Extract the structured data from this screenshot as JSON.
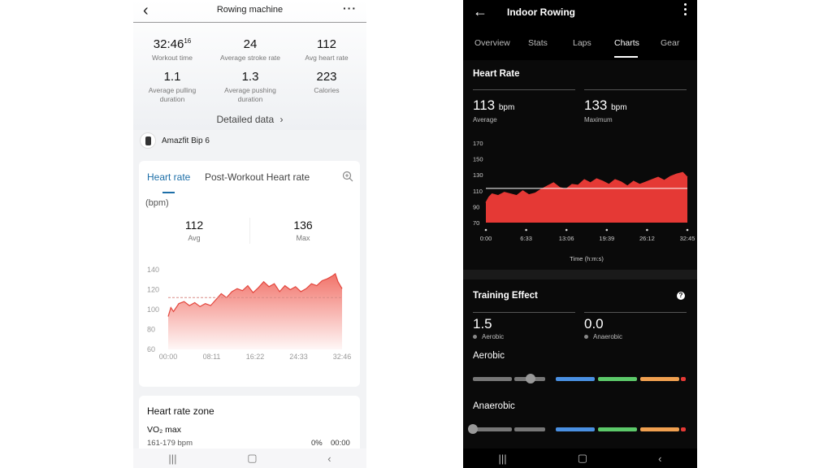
{
  "left": {
    "header": {
      "title": "Rowing machine"
    },
    "stats": [
      {
        "value": "32:46",
        "sup": "16",
        "label": "Workout time"
      },
      {
        "value": "24",
        "label": "Average stroke rate"
      },
      {
        "value": "112",
        "label": "Avg heart rate"
      },
      {
        "value": "1.1",
        "label": "Average pulling duration"
      },
      {
        "value": "1.3",
        "label": "Average pushing duration"
      },
      {
        "value": "223",
        "label": "Calories"
      }
    ],
    "detailed_label": "Detailed data",
    "device_name": "Amazfit Bip 6",
    "hr_card": {
      "tab_active": "Heart rate",
      "tab_other": "Post-Workout Heart rate",
      "unit_label": "(bpm)",
      "avg_value": "112",
      "avg_label": "Avg",
      "max_value": "136",
      "max_label": "Max"
    },
    "zone_card": {
      "title": "Heart rate zone",
      "zone_name": "VO₂ max",
      "zone_range": "161-179 bpm",
      "zone_percent": "0%",
      "zone_duration": "00:00"
    }
  },
  "right": {
    "header": {
      "title": "Indoor Rowing"
    },
    "tabs": [
      "Overview",
      "Stats",
      "Laps",
      "Charts",
      "Gear"
    ],
    "active_tab": "Charts",
    "heart_rate": {
      "title": "Heart Rate",
      "avg_value": "113",
      "avg_unit": "bpm",
      "avg_label": "Average",
      "max_value": "133",
      "max_unit": "bpm",
      "max_label": "Maximum"
    },
    "training": {
      "title": "Training Effect",
      "aerobic_value": "1.5",
      "aerobic_label": "Aerobic",
      "anaerobic_value": "0.0",
      "anaerobic_label": "Anaerobic",
      "aerobic_title": "Aerobic",
      "anaerobic_title": "Anaerobic",
      "help_glyph": "?",
      "aerobic_level_fraction": 0.27,
      "anaerobic_level_fraction": 0.0
    },
    "colors": {
      "red": "#e53935",
      "blue": "#4a90e2",
      "green": "#5cc96a",
      "orange": "#f0a050",
      "grey": "#777777"
    }
  },
  "chart_data": [
    {
      "type": "area",
      "title": "",
      "xlabel": "",
      "ylabel": "(bpm)",
      "x_ticks": [
        "00:00",
        "08:11",
        "16:22",
        "24:33",
        "32:46"
      ],
      "y_ticks": [
        60,
        80,
        100,
        120,
        140
      ],
      "ylim": [
        60,
        140
      ],
      "xlim": [
        0,
        32.77
      ],
      "reference_line": 112,
      "series": [
        {
          "x": [
            0,
            0.5,
            1,
            2,
            3,
            4,
            5,
            6,
            7,
            8,
            9,
            10,
            11,
            12,
            13,
            14,
            15,
            16,
            17,
            18,
            19,
            20,
            21,
            22,
            23,
            24,
            25,
            26,
            27,
            28,
            29,
            30,
            31,
            31.5,
            32,
            32.77
          ],
          "y": [
            93,
            102,
            98,
            106,
            108,
            104,
            107,
            103,
            106,
            104,
            110,
            116,
            112,
            118,
            121,
            119,
            124,
            117,
            122,
            128,
            123,
            126,
            118,
            124,
            120,
            123,
            118,
            121,
            126,
            124,
            129,
            131,
            134,
            136,
            128,
            121
          ]
        }
      ]
    },
    {
      "type": "area",
      "title": "",
      "xlabel": "Time (h:m:s)",
      "ylabel": "",
      "x_ticks": [
        "0:00",
        "6:33",
        "13:06",
        "19:39",
        "26:12",
        "32:45"
      ],
      "y_ticks": [
        70,
        90,
        110,
        130,
        150,
        170
      ],
      "ylim": [
        70,
        170
      ],
      "xlim": [
        0,
        32.75
      ],
      "reference_line": 113,
      "series": [
        {
          "x": [
            0,
            0.5,
            1,
            2,
            3,
            4,
            5,
            6,
            7,
            8,
            9,
            10,
            11,
            12,
            13,
            14,
            15,
            16,
            17,
            18,
            19,
            20,
            21,
            22,
            23,
            24,
            25,
            26,
            27,
            28,
            29,
            30,
            31,
            32,
            32.75
          ],
          "y": [
            95,
            102,
            106,
            104,
            108,
            106,
            104,
            110,
            105,
            107,
            112,
            116,
            120,
            114,
            112,
            118,
            117,
            124,
            120,
            125,
            122,
            118,
            124,
            121,
            116,
            122,
            118,
            121,
            124,
            127,
            123,
            128,
            131,
            133,
            127
          ]
        }
      ]
    }
  ]
}
